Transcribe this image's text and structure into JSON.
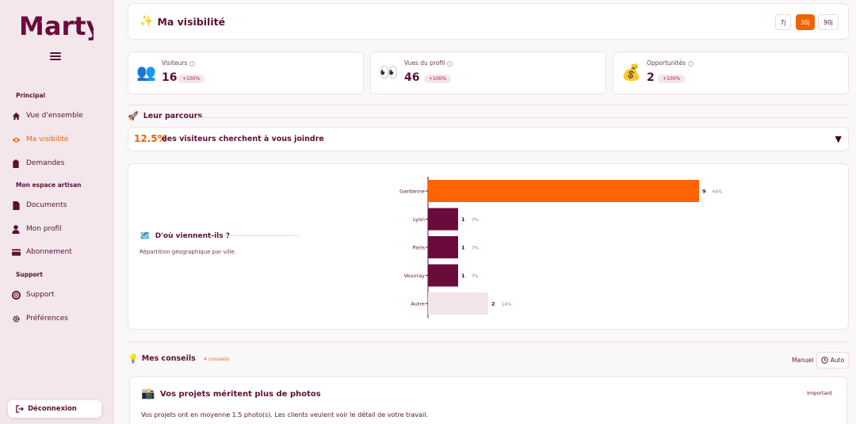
{
  "brand": {
    "logo_text": "Marty"
  },
  "sidebar": {
    "sections": [
      {
        "title": "Principal",
        "items": [
          {
            "label": "Vue d'ensemble",
            "icon": "home-icon"
          },
          {
            "label": "Ma visibilité",
            "icon": "eye-icon",
            "active": true
          },
          {
            "label": "Demandes",
            "icon": "clipboard-icon"
          }
        ]
      },
      {
        "title": "Mon espace artisan",
        "items": [
          {
            "label": "Documents",
            "icon": "document-icon"
          },
          {
            "label": "Mon profil",
            "icon": "user-icon"
          },
          {
            "label": "Abonnement",
            "icon": "credit-card-icon"
          }
        ]
      },
      {
        "title": "Support",
        "items": [
          {
            "label": "Support",
            "icon": "lifebuoy-icon"
          },
          {
            "label": "Préférences",
            "icon": "gear-icon"
          }
        ]
      }
    ],
    "logout_label": "Déconnexion"
  },
  "header": {
    "title": "Ma visibilité",
    "emoji": "✨",
    "ranges": [
      "7j",
      "30j",
      "90j"
    ],
    "selected_range": "30j"
  },
  "stats": [
    {
      "label": "Visiteurs",
      "value": "16",
      "badge": "+100%",
      "emoji": "👥"
    },
    {
      "label": "Vues du profil",
      "value": "46",
      "badge": "+100%",
      "emoji": "👀"
    },
    {
      "label": "Opportunités",
      "value": "2",
      "badge": "+100%",
      "emoji": "💰"
    }
  ],
  "journey": {
    "heading": "Leur parcours",
    "heading_emoji": "🚀",
    "percent": "12.5%",
    "text": "des visiteurs cherchent à vous joindre",
    "arrow": "▼"
  },
  "geo": {
    "title": "D'où viennent-ils ?",
    "emoji": "🗺️",
    "subtitle": "Répartition géographique par ville."
  },
  "chart_data": {
    "type": "bar",
    "orientation": "horizontal",
    "categories": [
      "Gardanne",
      "Lyon",
      "Paris",
      "Vouvray",
      "Autre"
    ],
    "values": [
      9,
      1,
      1,
      1,
      2
    ],
    "value_labels": [
      "9",
      "1",
      "1",
      "1",
      "2"
    ],
    "percent_labels": [
      "64%",
      "7%",
      "7%",
      "7%",
      "14%"
    ],
    "colors": [
      "#ff6404",
      "#6b0b3c",
      "#6b0b3c",
      "#6b0b3c",
      "#f1e4ea"
    ],
    "xlim": [
      0,
      9
    ]
  },
  "tips": {
    "heading": "Mes conseils",
    "emoji": "💡",
    "count": "4 conseils",
    "manual_label": "Manuel",
    "auto_label": "Auto"
  },
  "tip_card": {
    "emoji": "📸",
    "title": "Vos projets méritent plus de photos",
    "tag": "Important",
    "description": "Vos projets ont en moyenne 1.5 photo(s). Les clients veulent voir le détail de votre travail."
  },
  "colors": {
    "primary": "#5a1036",
    "accent": "#f06400",
    "sidebar_bg": "#f3e7ec"
  }
}
